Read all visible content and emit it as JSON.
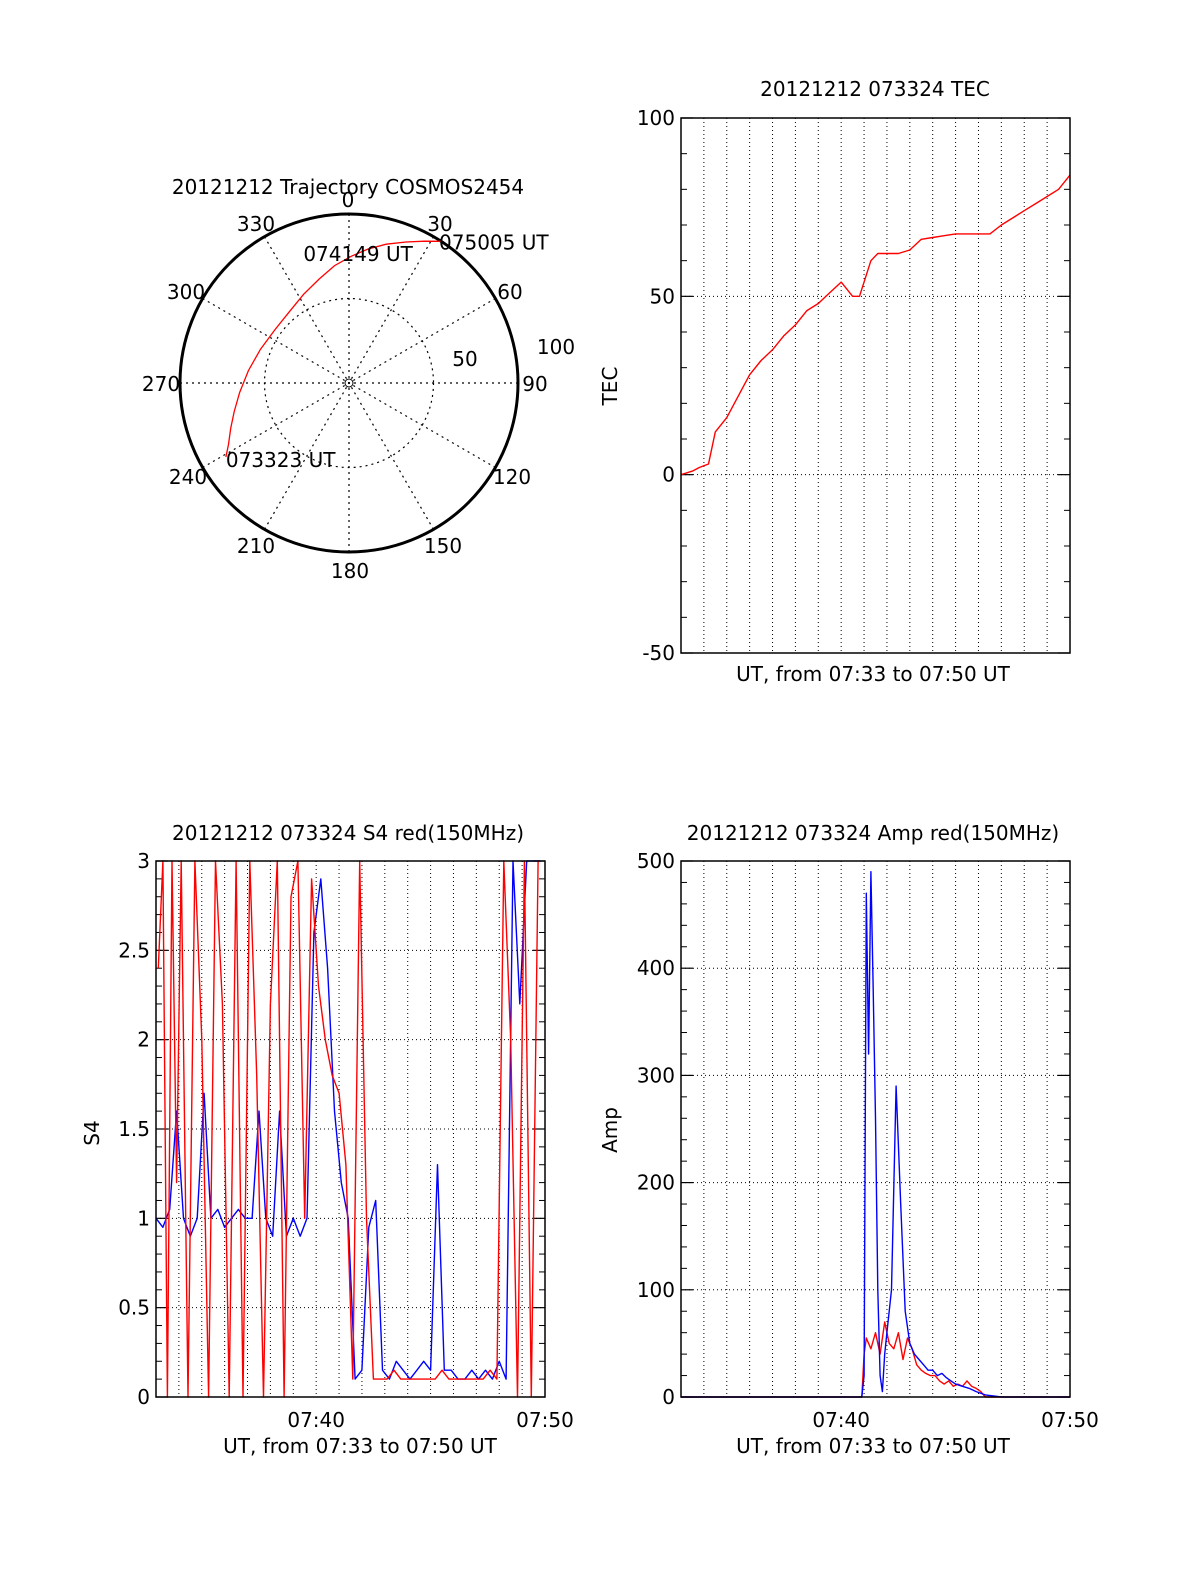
{
  "colors": {
    "red": "#ff0000",
    "blue": "#0000ff",
    "axis": "#000000",
    "grid": "#000000"
  },
  "chart_data": [
    {
      "id": "polar",
      "type": "scatter",
      "title": "20121212 Trajectory COSMOS2454",
      "coordinate_system": "polar",
      "azimuth_labels": [
        "0",
        "30",
        "60",
        "90",
        "120",
        "150",
        "180",
        "210",
        "240",
        "270",
        "300",
        "330"
      ],
      "radial_labels": [
        "50",
        "100"
      ],
      "grid": true,
      "series": [
        {
          "color": "red",
          "points": [
            {
              "az": 239,
              "r": 85
            },
            {
              "az": 243,
              "r": 80
            },
            {
              "az": 249,
              "r": 75
            },
            {
              "az": 256,
              "r": 70
            },
            {
              "az": 265,
              "r": 65
            },
            {
              "az": 277,
              "r": 60
            },
            {
              "az": 291,
              "r": 56
            },
            {
              "az": 306,
              "r": 54
            },
            {
              "az": 320,
              "r": 55
            },
            {
              "az": 333,
              "r": 59
            },
            {
              "az": 344,
              "r": 64
            },
            {
              "az": 353,
              "r": 70
            },
            {
              "az": 1,
              "r": 75
            },
            {
              "az": 8,
              "r": 80
            },
            {
              "az": 15,
              "r": 85
            },
            {
              "az": 22,
              "r": 90
            },
            {
              "az": 28,
              "r": 95
            },
            {
              "az": 33,
              "r": 100
            }
          ]
        }
      ],
      "annotations": [
        {
          "text": "073323 UT",
          "az": 239,
          "r": 85
        },
        {
          "text": "074149 UT",
          "az": 318,
          "r": 51
        },
        {
          "text": "075005 UT",
          "az": 33,
          "r": 100
        }
      ]
    },
    {
      "id": "tec",
      "type": "line",
      "title": "20121212 073324 TEC",
      "xlabel": "UT, from 07:33 to 07:50 UT",
      "ylabel": "TEC",
      "xlim": [
        0,
        17
      ],
      "ylim": [
        -50,
        100
      ],
      "yticks": [
        -50,
        0,
        50,
        100
      ],
      "grid": true,
      "series": [
        {
          "color": "red",
          "x": [
            0,
            0.5,
            0.8,
            1.2,
            1.5,
            2.0,
            2.5,
            3.0,
            3.5,
            4.0,
            4.5,
            5.0,
            5.5,
            6.0,
            6.5,
            7.0,
            7.5,
            7.8,
            8.3,
            8.6,
            9.0,
            9.5,
            10.0,
            10.5,
            11.0,
            11.5,
            12.0,
            12.5,
            13.0,
            13.5,
            14.0,
            14.5,
            15.0,
            15.5,
            16.0,
            16.5,
            17.0
          ],
          "y": [
            0,
            1,
            2,
            3,
            12,
            16,
            22,
            28,
            32,
            35,
            39,
            42,
            46,
            48,
            51,
            54,
            50,
            50,
            60,
            62,
            62,
            62,
            63,
            66,
            66.5,
            67,
            67.5,
            67.5,
            67.5,
            67.5,
            70,
            72,
            74,
            76,
            78,
            80,
            84
          ]
        }
      ]
    },
    {
      "id": "s4",
      "type": "line",
      "title": "20121212 073324 S4 red(150MHz)",
      "xlabel": "UT, from 07:33 to 07:50 UT",
      "ylabel": "S4",
      "xlim": [
        0,
        17
      ],
      "ylim": [
        0,
        3
      ],
      "yticks": [
        "0",
        "0.5",
        "1",
        "1.5",
        "2",
        "2.5",
        "3"
      ],
      "xticks": [
        {
          "at": 7,
          "label": "07:40"
        },
        {
          "at": 17,
          "label": "07:50"
        }
      ],
      "grid": true,
      "series": [
        {
          "color": "blue",
          "x": [
            0,
            0.3,
            0.6,
            0.9,
            1.2,
            1.5,
            1.8,
            2.1,
            2.4,
            2.7,
            3.0,
            3.3,
            3.6,
            3.9,
            4.2,
            4.5,
            4.8,
            5.1,
            5.4,
            5.7,
            6.0,
            6.3,
            6.6,
            6.9,
            7.2,
            7.5,
            7.8,
            8.1,
            8.4,
            8.7,
            9.0,
            9.3,
            9.6,
            9.9,
            10.2,
            10.5,
            10.8,
            11.1,
            11.4,
            11.7,
            12.0,
            12.3,
            12.6,
            12.9,
            13.2,
            13.5,
            13.8,
            14.1,
            14.4,
            14.7,
            15.0,
            15.3,
            15.6,
            15.9,
            16.2,
            16.5,
            16.8
          ],
          "y": [
            1.0,
            0.95,
            1.05,
            1.6,
            1.0,
            0.9,
            1.0,
            1.7,
            1.0,
            1.05,
            0.95,
            1.0,
            1.05,
            1.0,
            1.0,
            1.6,
            1.0,
            0.9,
            1.6,
            0.9,
            1.0,
            0.9,
            1.0,
            2.6,
            2.9,
            2.4,
            1.6,
            1.2,
            1.0,
            0.1,
            0.15,
            0.95,
            1.1,
            0.15,
            0.1,
            0.2,
            0.15,
            0.1,
            0.15,
            0.2,
            0.15,
            1.3,
            0.15,
            0.15,
            0.1,
            0.1,
            0.15,
            0.1,
            0.15,
            0.1,
            0.2,
            0.1,
            3.0,
            2.2,
            3.0,
            3.0,
            3.0
          ]
        },
        {
          "color": "red",
          "x": [
            0.1,
            0.3,
            0.5,
            0.7,
            0.9,
            1.1,
            1.4,
            1.7,
            2.0,
            2.3,
            2.6,
            2.9,
            3.2,
            3.5,
            3.8,
            4.1,
            4.4,
            4.7,
            5.0,
            5.3,
            5.6,
            5.9,
            6.2,
            6.5,
            6.8,
            7.1,
            7.4,
            7.7,
            8.0,
            8.3,
            8.6,
            8.9,
            9.2,
            9.5,
            9.8,
            10.1,
            10.4,
            10.7,
            11.0,
            11.3,
            11.6,
            11.9,
            12.2,
            12.5,
            12.8,
            13.1,
            13.4,
            13.7,
            14.0,
            14.3,
            14.6,
            14.9,
            15.2,
            15.5,
            15.8,
            16.1,
            16.4,
            16.7
          ],
          "y": [
            2.4,
            3.0,
            0.0,
            3.0,
            1.2,
            3.0,
            0.0,
            3.0,
            2.0,
            0.0,
            3.0,
            2.2,
            0.0,
            3.0,
            0.0,
            3.0,
            1.8,
            0.0,
            2.2,
            3.0,
            0.0,
            2.8,
            3.0,
            1.0,
            2.9,
            2.3,
            2.0,
            1.8,
            1.7,
            1.3,
            0.1,
            3.0,
            1.0,
            0.1,
            0.1,
            0.1,
            0.15,
            0.1,
            0.1,
            0.1,
            0.1,
            0.1,
            0.1,
            0.15,
            0.1,
            0.1,
            0.1,
            0.1,
            0.1,
            0.1,
            0.15,
            0.1,
            3.0,
            2.0,
            0.0,
            3.0,
            0.0,
            3.0
          ]
        }
      ]
    },
    {
      "id": "amp",
      "type": "line",
      "title": "20121212 073324 Amp red(150MHz)",
      "xlabel": "UT, from 07:33 to 07:50 UT",
      "ylabel": "Amp",
      "xlim": [
        0,
        17
      ],
      "ylim": [
        0,
        500
      ],
      "yticks": [
        0,
        100,
        200,
        300,
        400,
        500
      ],
      "xticks": [
        {
          "at": 7,
          "label": "07:40"
        },
        {
          "at": 17,
          "label": "07:50"
        }
      ],
      "grid": true,
      "series": [
        {
          "color": "red",
          "x": [
            0,
            3,
            6,
            7.9,
            8.0,
            8.1,
            8.3,
            8.5,
            8.7,
            8.9,
            9.1,
            9.3,
            9.5,
            9.7,
            9.9,
            10.1,
            10.3,
            10.5,
            10.7,
            10.9,
            11.1,
            11.3,
            11.5,
            11.7,
            11.9,
            12.1,
            12.3,
            12.5,
            12.7,
            12.9,
            13.1,
            13.3,
            14,
            17
          ],
          "y": [
            0,
            0,
            0,
            0,
            40,
            55,
            45,
            60,
            40,
            70,
            50,
            45,
            60,
            35,
            55,
            45,
            30,
            25,
            22,
            20,
            20,
            15,
            12,
            15,
            10,
            12,
            10,
            15,
            10,
            8,
            5,
            0,
            0,
            0
          ]
        },
        {
          "color": "blue",
          "x": [
            0,
            3,
            6,
            7.9,
            8.0,
            8.1,
            8.2,
            8.3,
            8.4,
            8.5,
            8.6,
            8.7,
            8.8,
            8.9,
            9.0,
            9.2,
            9.4,
            9.6,
            9.8,
            10.0,
            10.2,
            10.4,
            10.6,
            10.8,
            11.0,
            11.2,
            11.4,
            11.6,
            11.8,
            12.0,
            12.3,
            12.6,
            12.9,
            13.3,
            14,
            17
          ],
          "y": [
            0,
            0,
            0,
            0,
            20,
            470,
            320,
            490,
            380,
            260,
            100,
            20,
            5,
            40,
            60,
            100,
            290,
            180,
            80,
            50,
            40,
            35,
            30,
            25,
            25,
            20,
            22,
            18,
            15,
            12,
            10,
            8,
            5,
            2,
            0,
            0
          ]
        }
      ]
    }
  ]
}
